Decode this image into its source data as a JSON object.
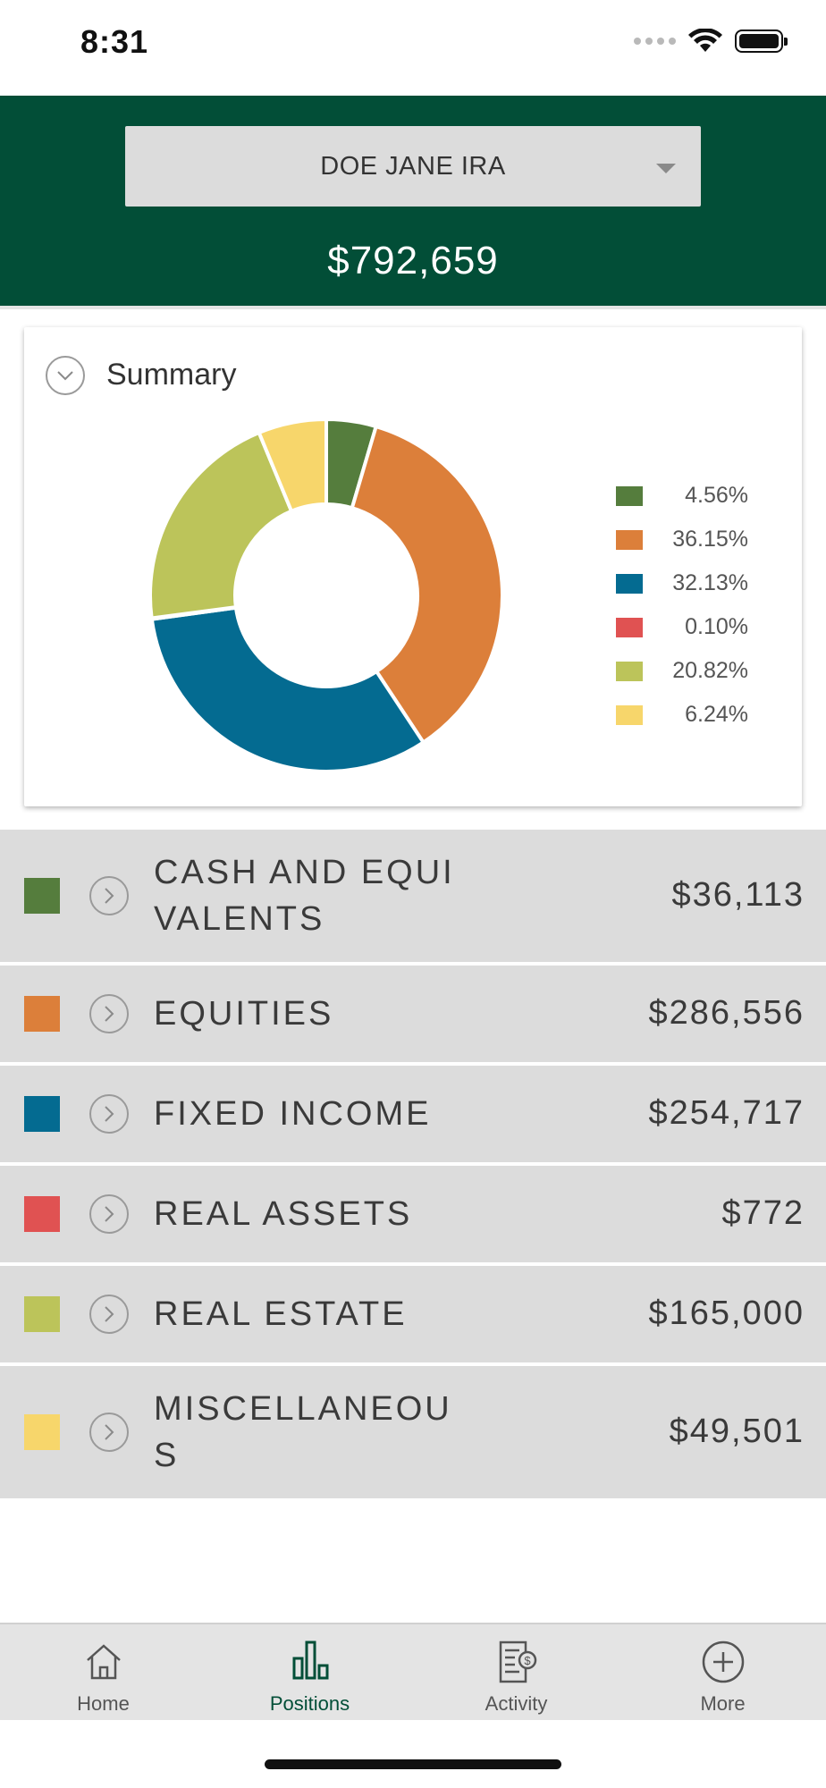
{
  "status_bar": {
    "time": "8:31"
  },
  "header": {
    "account_name": "DOE JANE IRA",
    "total_value": "$792,659",
    "background_color": "#024e37"
  },
  "summary": {
    "title": "Summary",
    "chart_data": {
      "type": "pie",
      "donut": true,
      "categories": [
        "CASH AND EQUIVALENTS",
        "EQUITIES",
        "FIXED INCOME",
        "REAL ASSETS",
        "REAL ESTATE",
        "MISCELLANEOUS"
      ],
      "values": [
        4.56,
        36.15,
        32.13,
        0.1,
        20.82,
        6.24
      ],
      "labels": [
        "4.56%",
        "36.15%",
        "32.13%",
        "0.10%",
        "20.82%",
        "6.24%"
      ],
      "colors": [
        "#557d3d",
        "#dc7f3a",
        "#046b91",
        "#e05252",
        "#bcc45a",
        "#f7d66b"
      ],
      "legend_position": "right"
    }
  },
  "assets": [
    {
      "name": "CASH AND EQUIVALENTS",
      "value": "$36,113",
      "color": "#557d3d"
    },
    {
      "name": "EQUITIES",
      "value": "$286,556",
      "color": "#dc7f3a"
    },
    {
      "name": "FIXED INCOME",
      "value": "$254,717",
      "color": "#046b91"
    },
    {
      "name": "REAL ASSETS",
      "value": "$772",
      "color": "#e05252"
    },
    {
      "name": "REAL ESTATE",
      "value": "$165,000",
      "color": "#bcc45a"
    },
    {
      "name": "MISCELLANEOUS",
      "value": "$49,501",
      "color": "#f7d66b"
    }
  ],
  "tabs": [
    {
      "label": "Home",
      "icon": "home-icon",
      "active": false
    },
    {
      "label": "Positions",
      "icon": "bar-chart-icon",
      "active": true
    },
    {
      "label": "Activity",
      "icon": "statement-icon",
      "active": false
    },
    {
      "label": "More",
      "icon": "plus-circle-icon",
      "active": false
    }
  ]
}
